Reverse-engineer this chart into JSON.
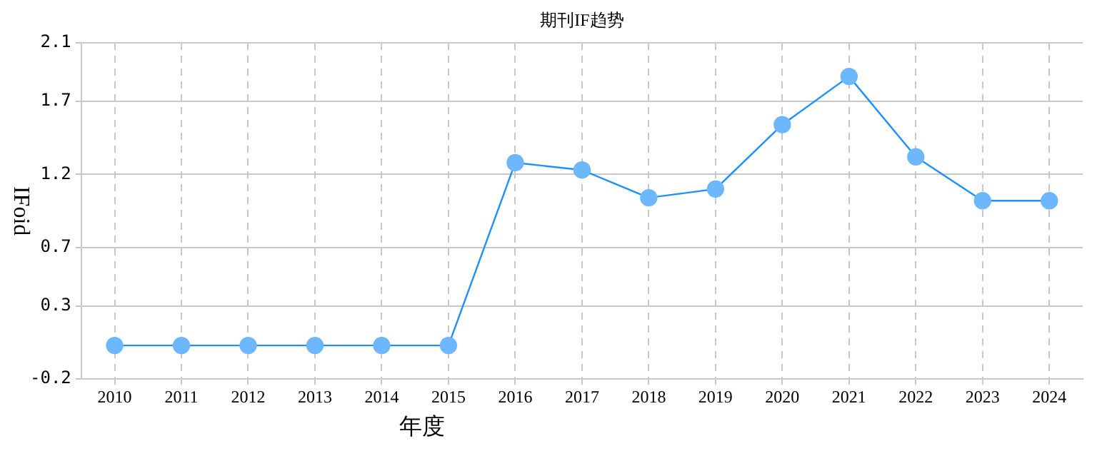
{
  "chart_data": {
    "type": "line",
    "title": "期刊IF趋势",
    "xlabel": "年度",
    "ylabel": "IFoid",
    "categories": [
      "2010",
      "2011",
      "2012",
      "2013",
      "2014",
      "2015",
      "2016",
      "2017",
      "2018",
      "2019",
      "2020",
      "2021",
      "2022",
      "2023",
      "2024"
    ],
    "series": [
      {
        "color": "#1e90ff",
        "values": [
          0.03,
          0.03,
          0.03,
          0.03,
          0.03,
          0.03,
          1.28,
          1.23,
          1.04,
          1.1,
          1.54,
          1.87,
          1.32,
          1.02,
          1.02
        ]
      }
    ],
    "ylim": [
      -0.2,
      2.1
    ],
    "yticks": [
      -0.2,
      0.3,
      0.7,
      1.2,
      1.7,
      2.1
    ],
    "grid": true,
    "legend": false,
    "marker": "circle",
    "line_style": "solid"
  }
}
